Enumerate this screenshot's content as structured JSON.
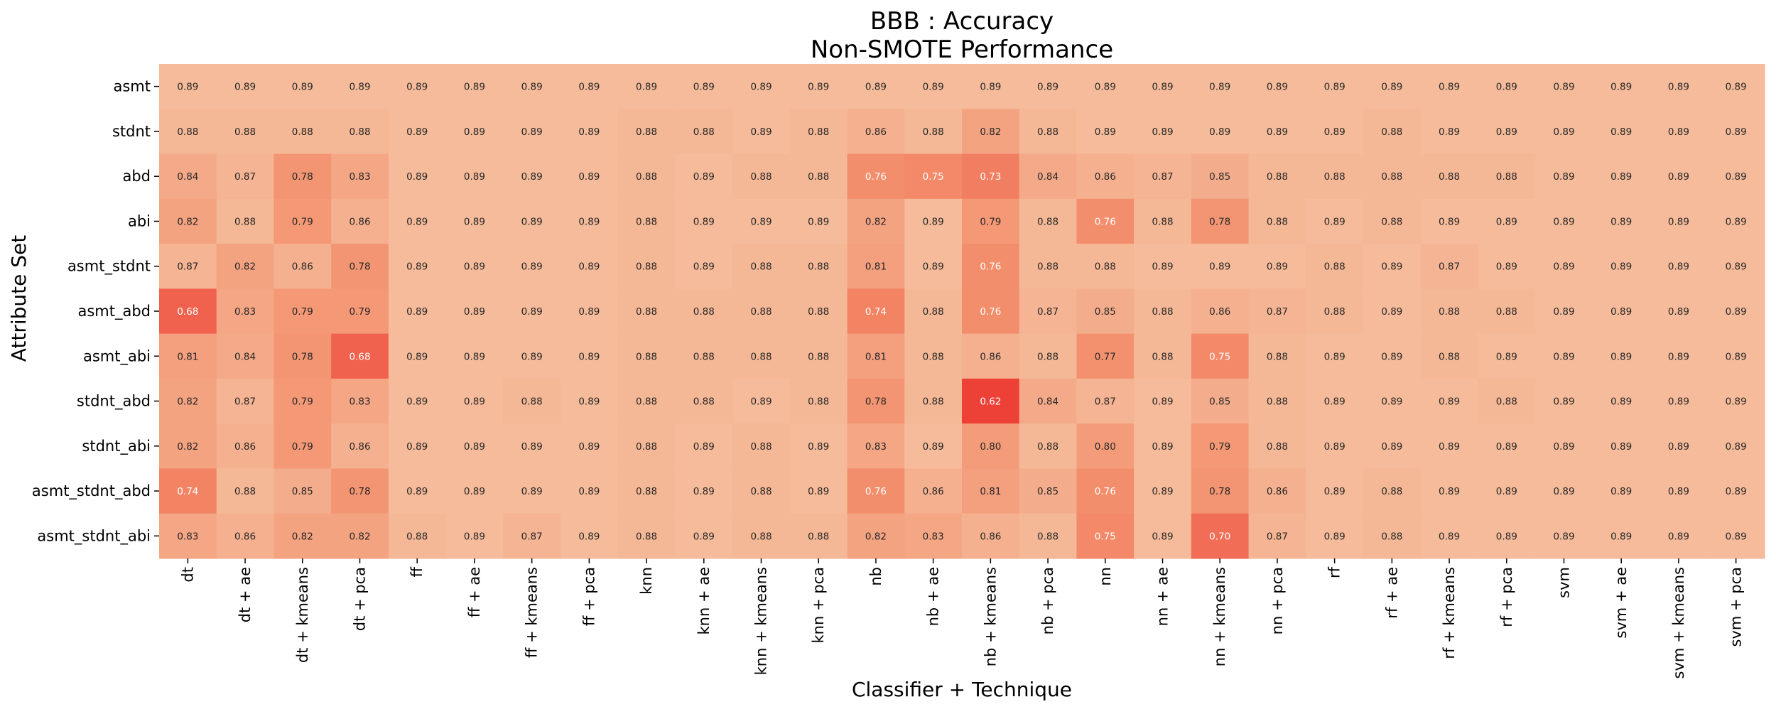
{
  "chart_data": {
    "type": "heatmap",
    "title": "BBB : Accuracy",
    "subtitle": "Non-SMOTE Performance",
    "xlabel": "Classifier + Technique",
    "ylabel": "Attribute Set",
    "x": [
      "dt",
      "dt + ae",
      "dt + kmeans",
      "dt + pca",
      "ff",
      "ff + ae",
      "ff + kmeans",
      "ff + pca",
      "knn",
      "knn + ae",
      "knn + kmeans",
      "knn + pca",
      "nb",
      "nb + ae",
      "nb + kmeans",
      "nb + pca",
      "nn",
      "nn + ae",
      "nn + kmeans",
      "nn + pca",
      "rf",
      "rf + ae",
      "rf + kmeans",
      "rf + pca",
      "svm",
      "svm + ae",
      "svm + kmeans",
      "svm + pca"
    ],
    "y": [
      "asmt",
      "stdnt",
      "abd",
      "abi",
      "asmt_stdnt",
      "asmt_abd",
      "asmt_abi",
      "stdnt_abd",
      "stdnt_abi",
      "asmt_stdnt_abd",
      "asmt_stdnt_abi"
    ],
    "values": [
      [
        0.89,
        0.89,
        0.89,
        0.89,
        0.89,
        0.89,
        0.89,
        0.89,
        0.89,
        0.89,
        0.89,
        0.89,
        0.89,
        0.89,
        0.89,
        0.89,
        0.89,
        0.89,
        0.89,
        0.89,
        0.89,
        0.89,
        0.89,
        0.89,
        0.89,
        0.89,
        0.89,
        0.89
      ],
      [
        0.88,
        0.88,
        0.88,
        0.88,
        0.89,
        0.89,
        0.89,
        0.89,
        0.88,
        0.88,
        0.89,
        0.88,
        0.86,
        0.88,
        0.82,
        0.88,
        0.89,
        0.89,
        0.89,
        0.89,
        0.89,
        0.88,
        0.89,
        0.89,
        0.89,
        0.89,
        0.89,
        0.89
      ],
      [
        0.84,
        0.87,
        0.78,
        0.83,
        0.89,
        0.89,
        0.89,
        0.89,
        0.88,
        0.89,
        0.88,
        0.88,
        0.76,
        0.75,
        0.73,
        0.84,
        0.86,
        0.87,
        0.85,
        0.88,
        0.88,
        0.88,
        0.88,
        0.88,
        0.89,
        0.89,
        0.89,
        0.89
      ],
      [
        0.82,
        0.88,
        0.79,
        0.86,
        0.89,
        0.89,
        0.89,
        0.89,
        0.88,
        0.89,
        0.89,
        0.89,
        0.82,
        0.89,
        0.79,
        0.88,
        0.76,
        0.88,
        0.78,
        0.88,
        0.89,
        0.88,
        0.89,
        0.89,
        0.89,
        0.89,
        0.89,
        0.89
      ],
      [
        0.87,
        0.82,
        0.86,
        0.78,
        0.89,
        0.89,
        0.89,
        0.89,
        0.88,
        0.89,
        0.88,
        0.88,
        0.81,
        0.89,
        0.76,
        0.88,
        0.88,
        0.89,
        0.89,
        0.89,
        0.88,
        0.89,
        0.87,
        0.89,
        0.89,
        0.89,
        0.89,
        0.89
      ],
      [
        0.68,
        0.83,
        0.79,
        0.79,
        0.89,
        0.89,
        0.89,
        0.89,
        0.88,
        0.88,
        0.88,
        0.88,
        0.74,
        0.88,
        0.76,
        0.87,
        0.85,
        0.88,
        0.86,
        0.87,
        0.88,
        0.89,
        0.88,
        0.88,
        0.89,
        0.89,
        0.89,
        0.89
      ],
      [
        0.81,
        0.84,
        0.78,
        0.68,
        0.89,
        0.89,
        0.89,
        0.89,
        0.88,
        0.88,
        0.88,
        0.88,
        0.81,
        0.88,
        0.86,
        0.88,
        0.77,
        0.88,
        0.75,
        0.88,
        0.89,
        0.89,
        0.88,
        0.89,
        0.89,
        0.89,
        0.89,
        0.89
      ],
      [
        0.82,
        0.87,
        0.79,
        0.83,
        0.89,
        0.89,
        0.88,
        0.89,
        0.88,
        0.88,
        0.89,
        0.88,
        0.78,
        0.88,
        0.62,
        0.84,
        0.87,
        0.89,
        0.85,
        0.88,
        0.89,
        0.89,
        0.89,
        0.88,
        0.89,
        0.89,
        0.89,
        0.89
      ],
      [
        0.82,
        0.86,
        0.79,
        0.86,
        0.89,
        0.89,
        0.89,
        0.89,
        0.88,
        0.89,
        0.88,
        0.89,
        0.83,
        0.89,
        0.8,
        0.88,
        0.8,
        0.89,
        0.79,
        0.88,
        0.89,
        0.89,
        0.89,
        0.89,
        0.89,
        0.89,
        0.89,
        0.89
      ],
      [
        0.74,
        0.88,
        0.85,
        0.78,
        0.89,
        0.89,
        0.89,
        0.89,
        0.88,
        0.89,
        0.88,
        0.89,
        0.76,
        0.86,
        0.81,
        0.85,
        0.76,
        0.89,
        0.78,
        0.86,
        0.89,
        0.88,
        0.89,
        0.89,
        0.89,
        0.89,
        0.89,
        0.89
      ],
      [
        0.83,
        0.86,
        0.82,
        0.82,
        0.88,
        0.89,
        0.87,
        0.89,
        0.88,
        0.89,
        0.88,
        0.88,
        0.82,
        0.83,
        0.86,
        0.88,
        0.75,
        0.89,
        0.7,
        0.87,
        0.89,
        0.88,
        0.89,
        0.89,
        0.89,
        0.89,
        0.89,
        0.89
      ]
    ],
    "value_format": "0.00",
    "colorbar": false,
    "colormap": {
      "low_color": "#ed4138",
      "mid_color": "#f38c6a",
      "high_color": "#f5bb9a",
      "light_text_color": "#ffffff",
      "dark_text_color": "#262626"
    },
    "grid": false,
    "legend": "none"
  }
}
